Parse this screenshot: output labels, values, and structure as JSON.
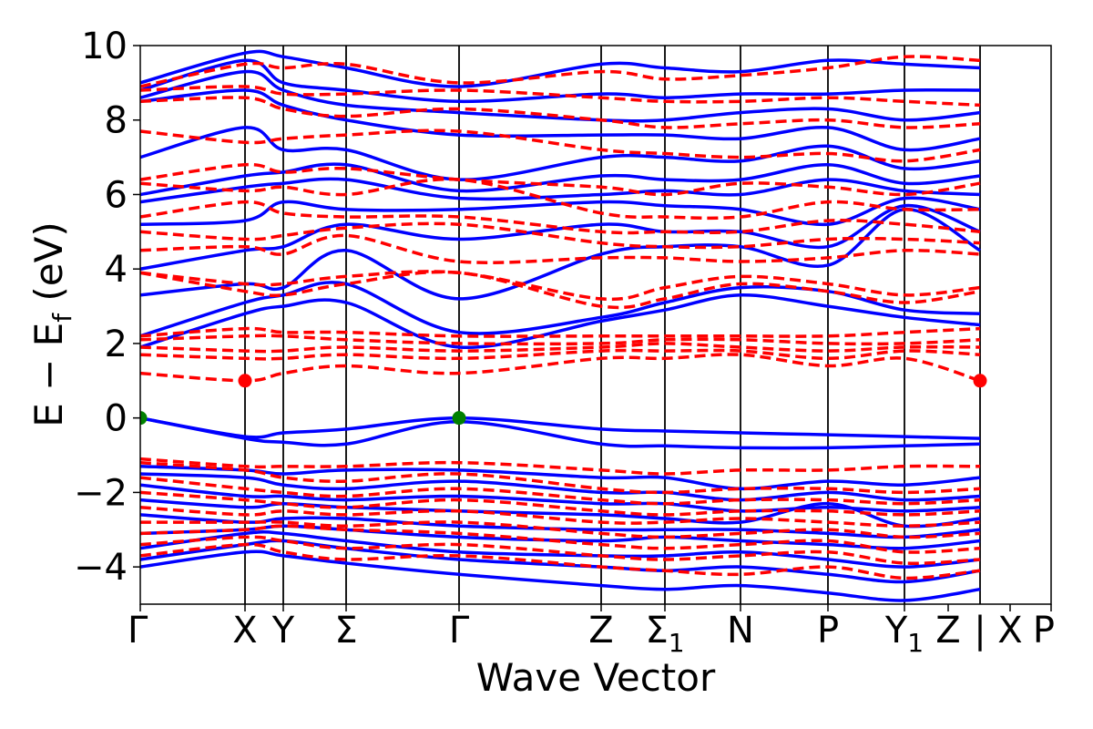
{
  "chart_data": {
    "type": "line",
    "title": "",
    "xlabel": "Wave Vector",
    "ylabel": {
      "main": "E − E",
      "sub": "f",
      "unit": " (eV)"
    },
    "ylim": [
      -5,
      10
    ],
    "yticks": [
      -4,
      -2,
      0,
      2,
      4,
      6,
      8,
      10
    ],
    "ytick_labels": [
      "−4",
      "−2",
      "0",
      "2",
      "4",
      "6",
      "8",
      "10"
    ],
    "xlim": [
      0,
      1
    ],
    "kpoints": [
      {
        "label": "Γ",
        "sub": "",
        "x": 0.0
      },
      {
        "label": "X",
        "sub": "",
        "x": 0.115
      },
      {
        "label": "Y",
        "sub": "",
        "x": 0.157
      },
      {
        "label": "Σ",
        "sub": "",
        "x": 0.226
      },
      {
        "label": "Γ",
        "sub": "",
        "x": 0.35
      },
      {
        "label": "Z",
        "sub": "",
        "x": 0.506
      },
      {
        "label": "Σ",
        "sub": "1",
        "x": 0.576
      },
      {
        "label": "N",
        "sub": "",
        "x": 0.659
      },
      {
        "label": "P",
        "sub": "",
        "x": 0.755
      },
      {
        "label": "Y",
        "sub": "1",
        "x": 0.839
      },
      {
        "label": "Z",
        "sub": "",
        "x": 0.887
      },
      {
        "label": "|",
        "sub": "",
        "x": 0.922
      },
      {
        "label": "X",
        "sub": "",
        "x": 0.955
      },
      {
        "label": "P",
        "sub": "",
        "x": 1.0
      }
    ],
    "vertical_lines": [
      0.115,
      0.157,
      0.226,
      0.35,
      0.506,
      0.576,
      0.659,
      0.755,
      0.839,
      0.922
    ],
    "series": [
      {
        "style": "solid",
        "color": "#0000ff",
        "bands": [
          [
            -4.0,
            -3.6,
            -3.7,
            -3.9,
            -4.2,
            -4.5,
            -4.6,
            -4.5,
            -4.7,
            -4.9,
            -4.6
          ],
          [
            -3.8,
            -3.4,
            -3.3,
            -3.5,
            -3.8,
            -4.0,
            -4.1,
            -4.0,
            -4.2,
            -4.4,
            -4.1
          ],
          [
            -3.5,
            -3.1,
            -3.1,
            -3.3,
            -3.6,
            -3.7,
            -3.7,
            -3.6,
            -3.8,
            -4.0,
            -3.8
          ],
          [
            -3.1,
            -3.0,
            -2.9,
            -3.0,
            -3.2,
            -3.3,
            -3.2,
            -3.3,
            -3.4,
            -3.5,
            -3.3
          ],
          [
            -2.6,
            -2.8,
            -2.7,
            -2.7,
            -2.9,
            -3.0,
            -3.0,
            -3.0,
            -3.1,
            -3.2,
            -3.0
          ],
          [
            -2.2,
            -2.4,
            -2.3,
            -2.4,
            -2.5,
            -2.6,
            -2.7,
            -2.8,
            -2.3,
            -2.9,
            -2.7
          ],
          [
            -1.8,
            -2.1,
            -2.1,
            -2.2,
            -2.1,
            -2.3,
            -2.3,
            -2.5,
            -2.4,
            -2.5,
            -2.4
          ],
          [
            -1.5,
            -1.6,
            -1.8,
            -1.9,
            -1.7,
            -2.0,
            -2.0,
            -2.2,
            -2.0,
            -2.2,
            -2.1
          ],
          [
            -1.3,
            -1.4,
            -1.5,
            -1.4,
            -1.4,
            -1.6,
            -1.6,
            -1.9,
            -1.7,
            -1.8,
            -1.6
          ],
          [
            0.0,
            -0.55,
            -0.65,
            -0.7,
            -0.1,
            -0.7,
            -0.75,
            -0.8,
            -0.8,
            -0.75,
            -0.7
          ],
          [
            0.0,
            -0.5,
            -0.4,
            -0.3,
            0.0,
            -0.3,
            -0.35,
            -0.4,
            -0.45,
            -0.5,
            -0.55
          ],
          [
            1.9,
            2.8,
            3.0,
            3.1,
            1.9,
            2.6,
            2.9,
            3.3,
            3.0,
            2.7,
            2.5
          ],
          [
            2.2,
            3.1,
            3.3,
            3.6,
            2.3,
            2.7,
            3.1,
            3.5,
            3.4,
            2.9,
            2.8
          ],
          [
            3.3,
            3.6,
            3.5,
            4.5,
            3.2,
            4.4,
            4.6,
            4.6,
            4.1,
            5.6,
            4.5
          ],
          [
            4.0,
            4.5,
            4.6,
            5.2,
            4.8,
            5.2,
            5.0,
            5.0,
            4.6,
            5.7,
            5.0
          ],
          [
            5.2,
            5.3,
            5.8,
            5.6,
            5.6,
            5.8,
            5.7,
            5.6,
            5.2,
            5.9,
            5.6
          ],
          [
            5.8,
            6.2,
            6.3,
            6.4,
            5.9,
            6.0,
            6.1,
            6.0,
            6.4,
            6.1,
            6.0
          ],
          [
            6.0,
            6.5,
            6.6,
            6.8,
            6.1,
            6.5,
            6.4,
            6.4,
            6.8,
            6.3,
            6.5
          ],
          [
            7.0,
            7.8,
            7.2,
            7.2,
            6.4,
            7.0,
            7.0,
            6.9,
            7.3,
            6.7,
            6.9
          ],
          [
            8.5,
            8.8,
            8.4,
            8.0,
            7.6,
            7.6,
            7.6,
            7.5,
            7.8,
            7.2,
            7.5
          ],
          [
            8.6,
            9.3,
            8.8,
            8.4,
            8.2,
            8.0,
            8.0,
            8.2,
            8.3,
            8.0,
            8.2
          ],
          [
            8.8,
            9.6,
            9.0,
            8.8,
            8.5,
            8.7,
            8.6,
            8.7,
            8.7,
            8.8,
            8.8
          ],
          [
            9.0,
            9.8,
            9.7,
            9.4,
            8.9,
            9.5,
            9.4,
            9.3,
            9.6,
            9.5,
            9.4
          ]
        ]
      },
      {
        "style": "dashed",
        "color": "#ff0000",
        "bands": [
          [
            -3.7,
            -3.4,
            -3.6,
            -3.8,
            -3.7,
            -4.0,
            -4.1,
            -4.2,
            -4.0,
            -4.3,
            -4.1
          ],
          [
            -3.4,
            -3.2,
            -3.3,
            -3.5,
            -3.4,
            -3.7,
            -3.8,
            -3.7,
            -3.6,
            -3.9,
            -3.8
          ],
          [
            -3.1,
            -3.0,
            -2.9,
            -3.0,
            -3.1,
            -3.4,
            -3.5,
            -3.4,
            -3.3,
            -3.6,
            -3.5
          ],
          [
            -2.8,
            -2.8,
            -2.8,
            -2.9,
            -2.8,
            -3.1,
            -3.2,
            -3.1,
            -3.0,
            -3.2,
            -3.1
          ],
          [
            -2.4,
            -2.6,
            -2.5,
            -2.6,
            -2.5,
            -2.8,
            -2.8,
            -2.7,
            -2.8,
            -2.9,
            -2.8
          ],
          [
            -2.0,
            -2.2,
            -2.3,
            -2.4,
            -2.2,
            -2.5,
            -2.6,
            -2.5,
            -2.5,
            -2.6,
            -2.5
          ],
          [
            -1.6,
            -1.9,
            -2.0,
            -2.1,
            -1.9,
            -2.2,
            -2.3,
            -2.2,
            -2.2,
            -2.3,
            -2.2
          ],
          [
            -1.2,
            -1.4,
            -1.6,
            -1.7,
            -1.5,
            -1.9,
            -2.0,
            -1.9,
            -1.9,
            -2.0,
            -1.9
          ],
          [
            -1.1,
            -1.3,
            -1.3,
            -1.3,
            -1.2,
            -1.4,
            -1.5,
            -1.4,
            -1.4,
            -1.3,
            -1.3
          ],
          [
            1.2,
            1.0,
            1.2,
            1.4,
            1.2,
            1.6,
            1.6,
            1.7,
            1.4,
            1.6,
            1.0
          ],
          [
            1.7,
            1.6,
            1.6,
            1.7,
            1.6,
            1.8,
            1.8,
            1.8,
            1.6,
            1.8,
            1.7
          ],
          [
            1.9,
            1.8,
            1.8,
            1.9,
            1.8,
            1.9,
            2.0,
            1.9,
            1.8,
            1.9,
            1.9
          ],
          [
            2.1,
            2.2,
            2.2,
            2.1,
            2.0,
            2.0,
            2.1,
            2.1,
            2.0,
            2.0,
            2.1
          ],
          [
            2.2,
            2.4,
            2.3,
            2.3,
            2.2,
            2.2,
            2.2,
            2.2,
            2.2,
            2.3,
            2.4
          ],
          [
            3.9,
            3.4,
            3.3,
            3.6,
            3.9,
            3.0,
            3.2,
            3.6,
            3.4,
            3.1,
            3.4
          ],
          [
            3.9,
            3.6,
            3.6,
            3.8,
            3.9,
            3.2,
            3.5,
            3.8,
            3.6,
            3.3,
            3.5
          ],
          [
            4.5,
            4.6,
            4.4,
            4.9,
            4.2,
            4.3,
            4.3,
            4.2,
            4.3,
            4.5,
            4.4
          ],
          [
            5.0,
            4.8,
            4.9,
            5.1,
            5.2,
            4.7,
            4.6,
            4.6,
            4.8,
            4.8,
            4.7
          ],
          [
            5.4,
            5.8,
            5.5,
            5.4,
            5.4,
            5.0,
            5.0,
            5.0,
            5.3,
            5.2,
            5.0
          ],
          [
            6.3,
            6.1,
            6.2,
            6.0,
            6.4,
            5.5,
            5.4,
            5.4,
            5.8,
            5.6,
            5.6
          ],
          [
            6.4,
            6.8,
            6.6,
            6.7,
            6.4,
            6.2,
            6.0,
            6.3,
            6.2,
            6.0,
            6.3
          ],
          [
            7.7,
            7.4,
            7.5,
            7.6,
            7.7,
            7.2,
            7.1,
            7.0,
            7.1,
            6.9,
            7.2
          ],
          [
            8.5,
            8.6,
            8.3,
            8.1,
            8.3,
            8.0,
            7.8,
            7.9,
            8.0,
            7.8,
            7.9
          ],
          [
            8.8,
            8.9,
            8.7,
            8.7,
            8.8,
            8.6,
            8.5,
            8.5,
            8.6,
            8.5,
            8.4
          ],
          [
            8.9,
            9.5,
            9.4,
            9.5,
            9.0,
            9.3,
            9.1,
            9.2,
            9.4,
            9.7,
            9.6
          ]
        ]
      }
    ],
    "markers": [
      {
        "x": 0.0,
        "y": 0.0,
        "color": "#008000"
      },
      {
        "x": 0.35,
        "y": 0.0,
        "color": "#008000"
      },
      {
        "x": 0.115,
        "y": 1.0,
        "color": "#ff0000"
      },
      {
        "x": 0.922,
        "y": 1.0,
        "color": "#ff0000"
      }
    ]
  }
}
